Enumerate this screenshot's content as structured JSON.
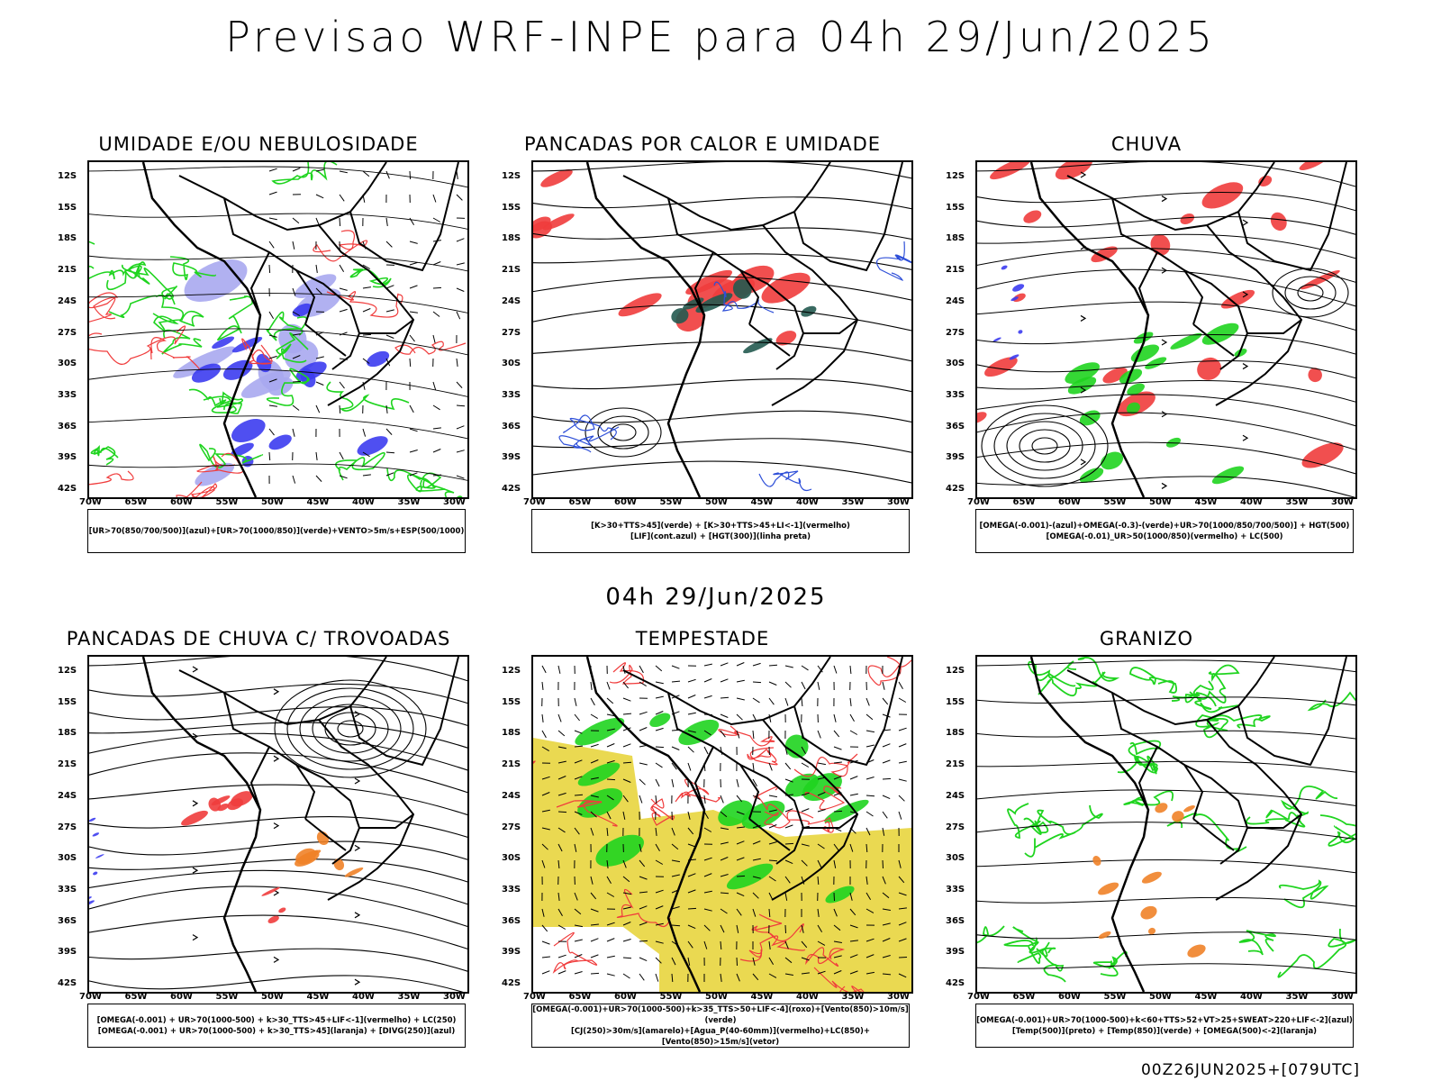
{
  "title": "Previsao WRF-INPE  para 04h 29/Jun/2025",
  "middle_title": "04h 29/Jun/2025",
  "footer": "00Z26JUN2025+[079UTC]",
  "lat_labels": [
    "12S",
    "15S",
    "18S",
    "21S",
    "24S",
    "27S",
    "30S",
    "33S",
    "36S",
    "39S",
    "42S"
  ],
  "lon_labels": [
    "70W",
    "65W",
    "60W",
    "55W",
    "50W",
    "45W",
    "40W",
    "35W",
    "30W"
  ],
  "colors": {
    "green": "#1fd41f",
    "red": "#f03c3c",
    "blue": "#3c3cf0",
    "orange": "#f08228",
    "yellow": "#e6d232",
    "teal": "#235a50",
    "black": "#000000"
  },
  "panels": [
    {
      "title": "UMIDADE E/OU NEBULOSIDADE",
      "legend_lines": [
        "[UR>70(850/700/500)](azul)+[UR>70(1000/850)](verde)+VENTO>5m/s+ESP(500/1000)"
      ]
    },
    {
      "title": "PANCADAS POR CALOR E UMIDADE",
      "legend_lines": [
        "[K>30+TTS>45](verde)  +  [K>30+TTS>45+LI<-1](vermelho)",
        "[LIF](cont.azul)  +  [HGT(300)](linha preta)"
      ]
    },
    {
      "title": "CHUVA",
      "legend_lines": [
        "[OMEGA(-0.001)-(azul)+OMEGA(-0.3)-(verde)+UR>70(1000/850/700/500)]  +  HGT(500)",
        "[OMEGA(-0.01)_UR>50(1000/850)(vermelho)  +  LC(500)"
      ]
    },
    {
      "title": "PANCADAS DE CHUVA C/ TROVOADAS",
      "legend_lines": [
        "[OMEGA(-0.001)  +  UR>70(1000-500)  +  k>30_TTS>45+LIF<-1](vermelho)  +  LC(250)",
        "[OMEGA(-0.001)  +  UR>70(1000-500)  +  k>30_TTS>45](laranja)  +  [DIVG(250)](azul)"
      ]
    },
    {
      "title": "TEMPESTADE",
      "legend_lines": [
        "[OMEGA(-0.001)+UR>70(1000-500)+k>35_TTS>50+LIF<-4](roxo)+[Vento(850)>10m/s](verde)",
        "[CJ(250)>30m/s](amarelo)+[Agua_P(40-60mm)](vermelho)+LC(850)+[Vento(850)>15m/s](vetor)"
      ]
    },
    {
      "title": "GRANIZO",
      "legend_lines": [
        "[OMEGA(-0.001)+UR>70(1000-500)+k<60+TTS>52+VT>25+SWEAT>220+LIF<-2](azul)",
        "[Temp(500)](preto)  +  [Temp(850)](verde)  +  [OMEGA(500)<-2](laranja)"
      ]
    }
  ]
}
